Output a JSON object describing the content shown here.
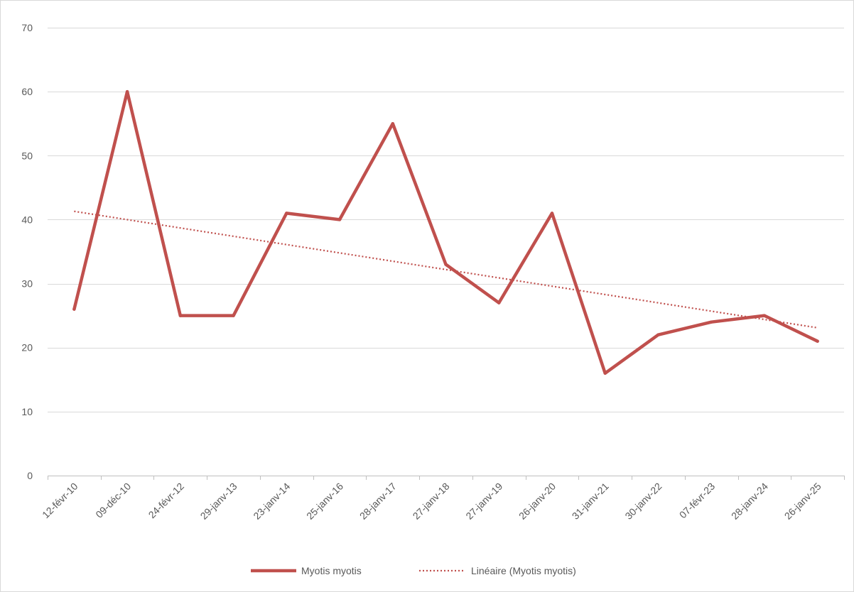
{
  "chart_data": {
    "type": "line",
    "categories": [
      "12-févr-10",
      "09-déc-10",
      "24-févr-12",
      "29-janv-13",
      "23-janv-14",
      "25-janv-16",
      "28-janv-17",
      "27-janv-18",
      "27-janv-19",
      "26-janv-20",
      "31-janv-21",
      "30-janv-22",
      "07-févr-23",
      "28-janv-24",
      "26-janv-25"
    ],
    "series": [
      {
        "name": "Myotis myotis",
        "values": [
          26,
          60,
          25,
          25,
          41,
          40,
          55,
          33,
          27,
          41,
          16,
          22,
          24,
          25,
          21
        ],
        "color": "#c0504d",
        "style": "solid"
      }
    ],
    "trendline": {
      "name": "Linéaire (Myotis myotis)",
      "type": "linear",
      "start": 41.3,
      "end": 23.1,
      "color": "#c0504d",
      "style": "dotted"
    },
    "ylim": [
      0,
      70
    ],
    "yticks": [
      0,
      10,
      20,
      30,
      40,
      50,
      60,
      70
    ],
    "grid": "horizontal",
    "legend_position": "bottom",
    "title": "",
    "xlabel": "",
    "ylabel": ""
  }
}
